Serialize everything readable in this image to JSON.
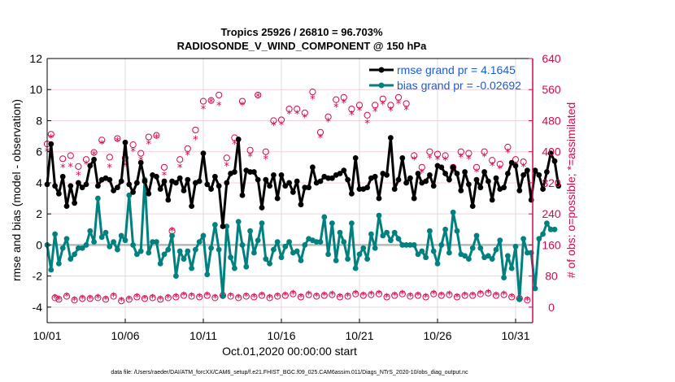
{
  "chart_data": {
    "type": "line",
    "title": "Tropics 25926 / 26810 = 96.703%",
    "subtitle": "RADIOSONDE_V_WIND_COMPONENT @ 150 hPa",
    "xlabel": "Oct.01,2020 00:00:00 start",
    "ylabel": "rmse and bias (model - observation)",
    "y2label": "# of obs: o=possible; *=assimilated",
    "footer": "data file: /Users/raeder/DAI/ATM_forcXX/CAM6_setup/f.e21.FHIST_BGC.f09_025.CAM6assim.011/Diags_NTrS_2020-10/obs_diag_output.nc",
    "x_tick_labels": [
      "10/01",
      "10/06",
      "10/11",
      "10/16",
      "10/21",
      "10/26",
      "10/31"
    ],
    "x_tick_days": [
      0,
      5,
      10,
      15,
      20,
      25,
      30
    ],
    "xlim_days": [
      0,
      31.1
    ],
    "ylim": [
      -5,
      12
    ],
    "y_ticks": [
      12,
      10,
      8,
      6,
      4,
      2,
      0,
      -2,
      -4
    ],
    "y2lim": [
      -40,
      640
    ],
    "y2_ticks": [
      640,
      560,
      480,
      400,
      320,
      240,
      160,
      80,
      0
    ],
    "grid": true,
    "legend": {
      "placement": "top-right",
      "entries": [
        "rmse grand pr = 4.1645",
        "bias grand pr = -0.02692"
      ]
    },
    "time_step_days": 0.25,
    "series": [
      {
        "name": "rmse grand pr = 4.1645",
        "color": "#000000",
        "axis": "left",
        "values": [
          3.9,
          6.5,
          3.8,
          3.3,
          4.4,
          2.5,
          3.8,
          2.7,
          4.0,
          3.7,
          3.9,
          5.1,
          5.5,
          3.8,
          4.2,
          4.3,
          4.2,
          3.5,
          3.7,
          4.1,
          6.6,
          3.9,
          3.4,
          4.0,
          5.3,
          4.1,
          3.3,
          4.5,
          4.4,
          3.6,
          4.1,
          2.9,
          4.1,
          4.0,
          4.3,
          3.5,
          4.2,
          2.5,
          4.0,
          4.1,
          5.9,
          3.9,
          3.6,
          4.4,
          3.8,
          1.2,
          4.0,
          4.6,
          4.7,
          6.8,
          3.2,
          4.8,
          4.7,
          4.7,
          4.2,
          2.4,
          4.2,
          3.8,
          4.5,
          3.0,
          4.5,
          3.8,
          4.0,
          3.4,
          4.1,
          2.6,
          3.7,
          3.7,
          5.0,
          4.0,
          4.1,
          4.4,
          4.3,
          4.3,
          4.5,
          4.6,
          4.8,
          4.2,
          3.3,
          5.6,
          3.6,
          3.6,
          3.7,
          4.3,
          4.4,
          3.0,
          4.6,
          4.5,
          6.9,
          3.6,
          4.2,
          5.6,
          4.0,
          4.3,
          3.0,
          4.6,
          4.0,
          4.1,
          4.5,
          3.8,
          5.1,
          5.0,
          4.6,
          4.2,
          5.0,
          4.6,
          3.5,
          4.7,
          3.9,
          2.5,
          4.2,
          3.7,
          4.7,
          4.1,
          2.9,
          4.3,
          3.6,
          3.7,
          4.6,
          5.3,
          5.1,
          3.5,
          4.5,
          4.8,
          2.9,
          4.8,
          4.5,
          3.6,
          4.7,
          5.9,
          5.4,
          3.8
        ]
      },
      {
        "name": "bias grand pr = -0.02692",
        "color": "#00817f",
        "axis": "left",
        "values": [
          0.0,
          -1.6,
          0.7,
          -1.2,
          -0.2,
          0.4,
          -0.9,
          -0.6,
          -0.2,
          -0.2,
          0.0,
          0.9,
          0.2,
          3.0,
          0.5,
          0.8,
          -0.1,
          0.2,
          -0.3,
          0.6,
          0.3,
          3.2,
          0.0,
          -0.6,
          -0.4,
          4.2,
          -0.5,
          0.2,
          0.2,
          -1.2,
          -0.6,
          -0.3,
          0.6,
          -2.0,
          -0.4,
          -0.9,
          -0.4,
          -1.5,
          -0.3,
          0.2,
          0.6,
          -1.9,
          -0.2,
          1.3,
          -0.3,
          -3.3,
          1.2,
          -0.8,
          -1.5,
          1.5,
          0.0,
          -1.4,
          0.9,
          -0.5,
          0.3,
          1.4,
          -0.9,
          -1.2,
          -0.3,
          0.2,
          -0.8,
          -0.1,
          0.2,
          -0.5,
          -0.4,
          -1.0,
          0.0,
          0.4,
          0.3,
          0.2,
          0.2,
          1.8,
          -0.6,
          1.4,
          -1.0,
          0.8,
          0.2,
          -0.9,
          1.4,
          -1.5,
          -0.6,
          -0.2,
          -0.9,
          0.7,
          -0.2,
          1.9,
          0.6,
          0.8,
          0.3,
          0.8,
          0.4,
          0.0,
          0.0,
          0.0,
          0.0,
          -0.6,
          -0.4,
          -0.8,
          0.9,
          -0.4,
          -1.2,
          0.0,
          1.0,
          -0.5,
          2.1,
          0.9,
          -0.6,
          -0.7,
          -0.9,
          -0.2,
          0.6,
          -0.2,
          -0.8,
          -0.7,
          -0.9,
          -0.3,
          0.3,
          -2.1,
          -0.7,
          -1.5,
          -0.1,
          -3.5,
          0.4,
          -0.5,
          -0.5,
          -2.8,
          0.4,
          0.7,
          1.4,
          1.0,
          1.0
        ]
      },
      {
        "name": "possible (o)",
        "color": "#d6084f",
        "axis": "right",
        "values": [
          420,
          445,
          24,
          20,
          382,
          28,
          390,
          18,
          362,
          22,
          380,
          22,
          398,
          24,
          430,
          20,
          386,
          28,
          434,
          16,
          384,
          20,
          418,
          26,
          396,
          22,
          438,
          24,
          442,
          20,
          360,
          24,
          196,
          26,
          380,
          30,
          408,
          28,
          456,
          26,
          530,
          30,
          532,
          24,
          546,
          30,
          384,
          28,
          436,
          24,
          530,
          28,
          404,
          26,
          546,
          30,
          400,
          24,
          480,
          28,
          482,
          30,
          510,
          34,
          510,
          26,
          500,
          32,
          554,
          28,
          450,
          30,
          490,
          32,
          534,
          26,
          540,
          28,
          510,
          34,
          520,
          30,
          494,
          32,
          520,
          34,
          536,
          26,
          520,
          30,
          540,
          34,
          524,
          28,
          390,
          30,
          360,
          26,
          400,
          34,
          394,
          30,
          390,
          32,
          360,
          26,
          400,
          30,
          396,
          30,
          360,
          34,
          400,
          36,
          378,
          30,
          368,
          32,
          412,
          26,
          380,
          22,
          374,
          18
        ]
      },
      {
        "name": "assimilated (*)",
        "color": "#d6084f",
        "axis": "right",
        "values": [
          400,
          436,
          24,
          20,
          360,
          28,
          362,
          18,
          340,
          22,
          368,
          22,
          392,
          24,
          420,
          20,
          360,
          28,
          428,
          16,
          364,
          20,
          402,
          26,
          378,
          22,
          420,
          24,
          436,
          20,
          340,
          24,
          196,
          26,
          360,
          30,
          392,
          28,
          432,
          26,
          510,
          30,
          528,
          24,
          520,
          30,
          364,
          28,
          420,
          24,
          520,
          28,
          388,
          26,
          542,
          30,
          382,
          24,
          468,
          28,
          470,
          30,
          498,
          34,
          498,
          26,
          488,
          32,
          536,
          28,
          436,
          30,
          478,
          32,
          516,
          26,
          526,
          28,
          496,
          34,
          506,
          30,
          474,
          32,
          504,
          34,
          522,
          26,
          506,
          30,
          524,
          34,
          508,
          28,
          380,
          30,
          346,
          26,
          384,
          34,
          380,
          30,
          378,
          32,
          346,
          26,
          386,
          30,
          382,
          30,
          348,
          34,
          388,
          36,
          364,
          30,
          356,
          32,
          398,
          26,
          364,
          22,
          362,
          18
        ]
      }
    ]
  }
}
